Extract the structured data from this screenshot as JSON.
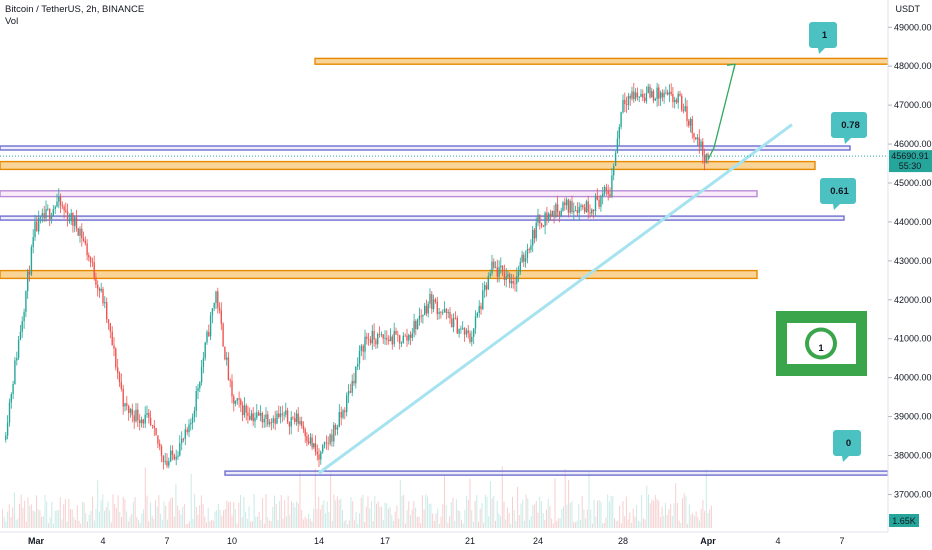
{
  "header": {
    "symbol_line": "Bitcoin / TetherUS, 2h, BINANCE",
    "volume_label": "Vol"
  },
  "price_axis": {
    "currency": "USDT",
    "ticks": [
      "49000.00",
      "48000.00",
      "47000.00",
      "46000.00",
      "45000.00",
      "44000.00",
      "43000.00",
      "42000.00",
      "41000.00",
      "40000.00",
      "39000.00",
      "38000.00",
      "37000.00"
    ]
  },
  "time_axis": {
    "ticks": [
      "Mar",
      "4",
      "7",
      "10",
      "14",
      "17",
      "21",
      "24",
      "28",
      "Apr",
      "4",
      "7"
    ]
  },
  "current_price": {
    "price": "45690.91",
    "countdown": "55:30",
    "color": "#26a69a"
  },
  "volume_badge": {
    "value": "1.65K",
    "color": "#26a69a"
  },
  "fib_labels": [
    "1",
    "0.78",
    "0.61",
    "0"
  ],
  "colors": {
    "up": "#26a69a",
    "down": "#ef5350",
    "zone_orange": "#f5b041",
    "zone_border": "#e58a00",
    "fib_line": "#6f6fd0",
    "trendline": "#a6e3f0",
    "callout": "#4cc1c1",
    "money_icon": "#3aa54a"
  },
  "icons": [
    "money-bill-icon"
  ],
  "chart_data": {
    "type": "candlestick",
    "title": "Bitcoin / TetherUS, 2h, BINANCE",
    "x": [
      "Mar",
      "4",
      "7",
      "10",
      "14",
      "17",
      "21",
      "24",
      "28",
      "Apr",
      "4",
      "7"
    ],
    "ylabel": "USDT",
    "ylim": [
      36500,
      49500
    ],
    "grid": false,
    "price_path": [
      {
        "date": "Feb 28",
        "price": 38400
      },
      {
        "date": "Mar 1",
        "price": 43800
      },
      {
        "date": "Mar 2",
        "price": 44500
      },
      {
        "date": "Mar 3",
        "price": 43800
      },
      {
        "date": "Mar 4",
        "price": 42000
      },
      {
        "date": "Mar 5",
        "price": 39200
      },
      {
        "date": "Mar 6",
        "price": 38900
      },
      {
        "date": "Mar 7",
        "price": 37800
      },
      {
        "date": "Mar 8",
        "price": 38600
      },
      {
        "date": "Mar 9",
        "price": 42200
      },
      {
        "date": "Mar 10",
        "price": 39400
      },
      {
        "date": "Mar 11",
        "price": 39000
      },
      {
        "date": "Mar 12",
        "price": 39000
      },
      {
        "date": "Mar 13",
        "price": 38900
      },
      {
        "date": "Mar 14",
        "price": 37900
      },
      {
        "date": "Mar 15",
        "price": 39100
      },
      {
        "date": "Mar 16",
        "price": 41000
      },
      {
        "date": "Mar 17",
        "price": 41000
      },
      {
        "date": "Mar 18",
        "price": 41000
      },
      {
        "date": "Mar 19",
        "price": 42000
      },
      {
        "date": "Mar 20",
        "price": 41500
      },
      {
        "date": "Mar 21",
        "price": 41000
      },
      {
        "date": "Mar 22",
        "price": 42800
      },
      {
        "date": "Mar 23",
        "price": 42500
      },
      {
        "date": "Mar 24",
        "price": 44000
      },
      {
        "date": "Mar 25",
        "price": 44400
      },
      {
        "date": "Mar 26",
        "price": 44400
      },
      {
        "date": "Mar 27",
        "price": 44800
      },
      {
        "date": "Mar 28",
        "price": 47200
      },
      {
        "date": "Mar 29",
        "price": 47300
      },
      {
        "date": "Mar 30",
        "price": 47100
      },
      {
        "date": "Mar 31",
        "price": 45500
      }
    ],
    "horizontal_zones": [
      {
        "label": "1",
        "price_top": 48200,
        "price_bottom": 48050,
        "color": "orange"
      },
      {
        "label": "0.78",
        "price_top": 45950,
        "price_bottom": 45850,
        "color": "blue"
      },
      {
        "label": "",
        "price_top": 45550,
        "price_bottom": 45350,
        "color": "orange"
      },
      {
        "label": "",
        "price_top": 44800,
        "price_bottom": 44650,
        "color": "pink"
      },
      {
        "label": "0.61",
        "price_top": 44150,
        "price_bottom": 44050,
        "color": "blue"
      },
      {
        "label": "",
        "price_top": 42750,
        "price_bottom": 42550,
        "color": "orange"
      },
      {
        "label": "0",
        "price_top": 37600,
        "price_bottom": 37500,
        "color": "blue"
      }
    ],
    "trendline": {
      "from": {
        "date": "Mar 14",
        "price": 37550
      },
      "to": {
        "date": "Apr 4",
        "price": 46500
      }
    },
    "projection_arrow": {
      "from": {
        "date": "Mar 31",
        "price": 45600
      },
      "to": {
        "date": "Apr 2",
        "price": 48050
      }
    }
  }
}
